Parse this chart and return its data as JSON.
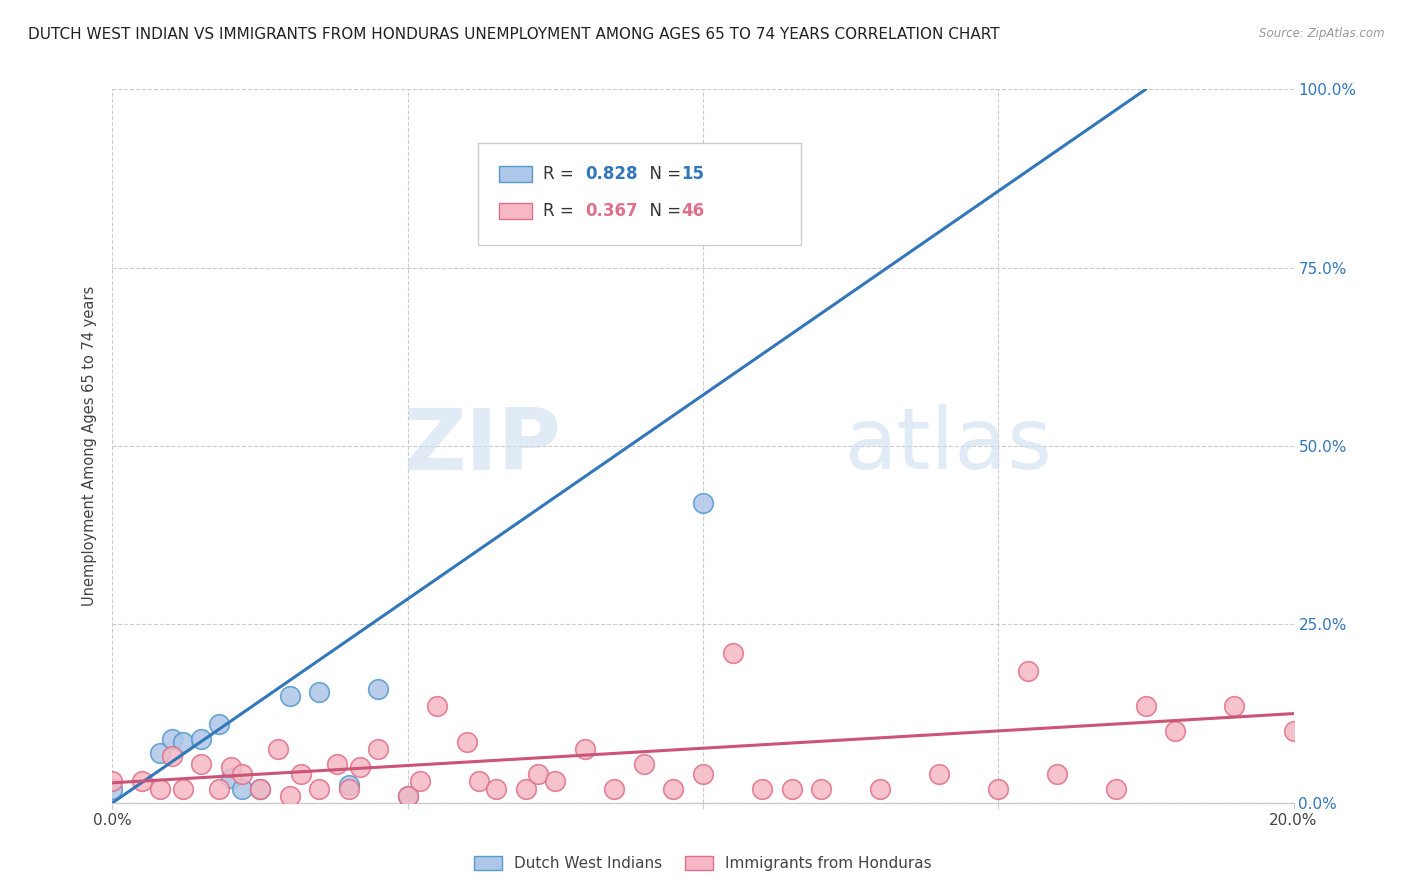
{
  "title": "DUTCH WEST INDIAN VS IMMIGRANTS FROM HONDURAS UNEMPLOYMENT AMONG AGES 65 TO 74 YEARS CORRELATION CHART",
  "source": "Source: ZipAtlas.com",
  "ylabel": "Unemployment Among Ages 65 to 74 years",
  "xlim": [
    0.0,
    0.2
  ],
  "ylim": [
    0.0,
    1.0
  ],
  "ytick_labels": [
    "0.0%",
    "25.0%",
    "50.0%",
    "75.0%",
    "100.0%"
  ],
  "ytick_vals": [
    0.0,
    0.25,
    0.5,
    0.75,
    1.0
  ],
  "xtick_vals": [
    0.0,
    0.05,
    0.1,
    0.15,
    0.2
  ],
  "blue_R": "0.828",
  "blue_N": "15",
  "pink_R": "0.367",
  "pink_N": "46",
  "blue_fill_color": "#aec6e8",
  "blue_edge_color": "#5599cc",
  "pink_fill_color": "#f5b8c4",
  "pink_edge_color": "#e0708a",
  "blue_line_color": "#3377bb",
  "pink_line_color": "#cc5577",
  "watermark_zip": "ZIP",
  "watermark_atlas": "atlas",
  "blue_scatter_x": [
    0.0,
    0.008,
    0.01,
    0.012,
    0.015,
    0.018,
    0.02,
    0.022,
    0.025,
    0.03,
    0.035,
    0.04,
    0.045,
    0.05,
    0.1
  ],
  "blue_scatter_y": [
    0.02,
    0.07,
    0.09,
    0.085,
    0.09,
    0.11,
    0.035,
    0.02,
    0.02,
    0.15,
    0.155,
    0.025,
    0.16,
    0.01,
    0.42
  ],
  "pink_scatter_x": [
    0.0,
    0.005,
    0.008,
    0.01,
    0.012,
    0.015,
    0.018,
    0.02,
    0.022,
    0.025,
    0.028,
    0.03,
    0.032,
    0.035,
    0.038,
    0.04,
    0.042,
    0.045,
    0.05,
    0.052,
    0.055,
    0.06,
    0.062,
    0.065,
    0.07,
    0.072,
    0.075,
    0.08,
    0.085,
    0.09,
    0.095,
    0.1,
    0.105,
    0.11,
    0.115,
    0.12,
    0.13,
    0.14,
    0.15,
    0.155,
    0.16,
    0.17,
    0.175,
    0.18,
    0.19,
    0.2
  ],
  "pink_scatter_y": [
    0.03,
    0.03,
    0.02,
    0.065,
    0.02,
    0.055,
    0.02,
    0.05,
    0.04,
    0.02,
    0.075,
    0.01,
    0.04,
    0.02,
    0.055,
    0.02,
    0.05,
    0.075,
    0.01,
    0.03,
    0.135,
    0.085,
    0.03,
    0.02,
    0.02,
    0.04,
    0.03,
    0.075,
    0.02,
    0.055,
    0.02,
    0.04,
    0.21,
    0.02,
    0.02,
    0.02,
    0.02,
    0.04,
    0.02,
    0.185,
    0.04,
    0.02,
    0.135,
    0.1,
    0.135,
    0.1
  ],
  "blue_trend_x0": 0.0,
  "blue_trend_y0": 0.0,
  "blue_trend_x1": 0.175,
  "blue_trend_y1": 1.0,
  "pink_trend_x0": 0.0,
  "pink_trend_y0": 0.028,
  "pink_trend_x1": 0.2,
  "pink_trend_y1": 0.125,
  "grid_color": "#cccccc",
  "bg_color": "#ffffff",
  "axis_color": "#444444",
  "title_color": "#222222",
  "right_axis_color": "#3377bb",
  "tick_label_color": "#444444"
}
